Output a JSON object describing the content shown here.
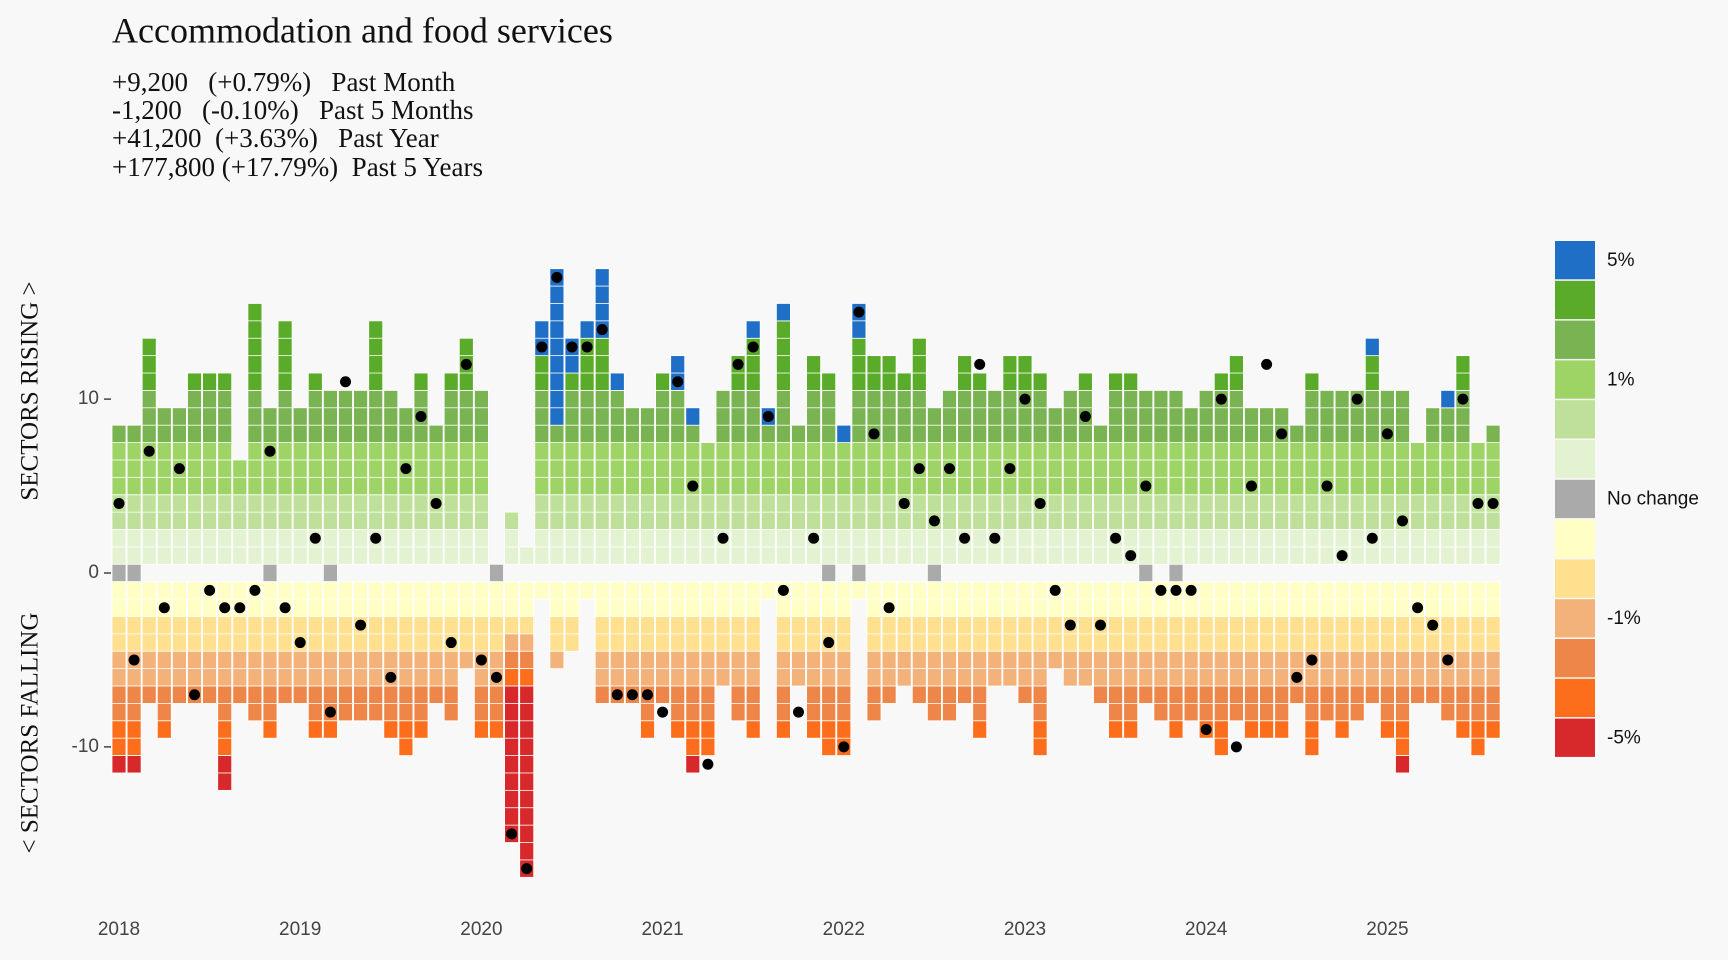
{
  "chart_data": {
    "type": "waffle-bar",
    "title": "Accommodation and food services",
    "subtitle": [
      "+9,200   (+0.79%)   Past Month",
      "-1,200   (-0.10%)   Past 5 Months",
      "+41,200  (+3.63%)   Past Year",
      "+177,800 (+17.79%)  Past 5 Years"
    ],
    "y_label_top": "SECTORS RISING >",
    "y_label_bottom": "< SECTORS FALLING",
    "categories": [
      "2018",
      null,
      null,
      null,
      null,
      null,
      null,
      null,
      null,
      null,
      null,
      null,
      "2019",
      null,
      null,
      null,
      null,
      null,
      null,
      null,
      null,
      null,
      null,
      null,
      "2020",
      null,
      null,
      null,
      null,
      null,
      null,
      null,
      null,
      null,
      null,
      null,
      "2021",
      null,
      null,
      null,
      null,
      null,
      null,
      null,
      null,
      null,
      null,
      null,
      "2022",
      null,
      null,
      null,
      null,
      null,
      null,
      null,
      null,
      null,
      null,
      null,
      "2023",
      null,
      null,
      null,
      null,
      null,
      null,
      null,
      null,
      null,
      null,
      null,
      "2024",
      null,
      null,
      null,
      null,
      null,
      null,
      null,
      null,
      null,
      null,
      null,
      "2025",
      null,
      null,
      null,
      null,
      null,
      null,
      null
    ],
    "ylim": [
      -18,
      18
    ],
    "yticks": [
      -10,
      0,
      10
    ],
    "series": [
      {
        "name": "5%",
        "color": "#1f6fc6",
        "stack": "rising",
        "values": [
          0,
          0,
          0,
          0,
          0,
          0,
          0,
          0,
          0,
          0,
          0,
          0,
          0,
          0,
          0,
          0,
          0,
          0,
          0,
          0,
          0,
          0,
          0,
          0,
          0,
          0,
          0,
          0,
          2,
          9,
          2,
          1,
          4,
          1,
          0,
          0,
          0,
          2,
          1,
          0,
          0,
          0,
          1,
          1,
          1,
          0,
          0,
          0,
          1,
          2,
          0,
          0,
          0,
          0,
          0,
          0,
          0,
          0,
          0,
          0,
          0,
          0,
          0,
          0,
          0,
          0,
          0,
          0,
          0,
          0,
          0,
          0,
          0,
          0,
          0,
          0,
          0,
          0,
          0,
          0,
          0,
          0,
          0,
          1,
          0,
          0,
          0,
          0,
          1,
          0,
          0,
          0
        ]
      },
      {
        "name": null,
        "color": "#5aab2a",
        "stack": "rising",
        "values": [
          0,
          0,
          3,
          0,
          0,
          1,
          1,
          1,
          0,
          5,
          0,
          4,
          0,
          1,
          0,
          0,
          0,
          4,
          0,
          0,
          1,
          0,
          1,
          3,
          0,
          0,
          0,
          0,
          2,
          0,
          1,
          3,
          3,
          0,
          0,
          0,
          1,
          0,
          0,
          0,
          0,
          2,
          3,
          0,
          4,
          0,
          2,
          1,
          0,
          3,
          2,
          2,
          1,
          3,
          0,
          0,
          2,
          1,
          0,
          2,
          2,
          1,
          0,
          0,
          1,
          0,
          1,
          1,
          0,
          0,
          0,
          0,
          0,
          1,
          2,
          0,
          0,
          0,
          0,
          1,
          0,
          0,
          0,
          2,
          0,
          0,
          0,
          0,
          0,
          2,
          0,
          0
        ]
      },
      {
        "name": null,
        "color": "#7ab352",
        "stack": "rising",
        "values": [
          1,
          1,
          3,
          2,
          2,
          3,
          3,
          3,
          0,
          3,
          2,
          3,
          2,
          3,
          3,
          3,
          3,
          3,
          3,
          2,
          3,
          1,
          3,
          3,
          3,
          0,
          0,
          0,
          3,
          1,
          3,
          3,
          3,
          3,
          2,
          2,
          3,
          3,
          1,
          0,
          3,
          3,
          3,
          1,
          3,
          1,
          3,
          3,
          0,
          3,
          3,
          3,
          3,
          3,
          2,
          3,
          3,
          3,
          3,
          3,
          3,
          3,
          2,
          3,
          3,
          1,
          3,
          3,
          3,
          3,
          3,
          2,
          3,
          3,
          3,
          2,
          2,
          2,
          1,
          3,
          3,
          3,
          3,
          3,
          3,
          3,
          0,
          2,
          2,
          3,
          0,
          1
        ]
      },
      {
        "name": "1%",
        "color": "#9dd465",
        "stack": "rising",
        "values": [
          3,
          3,
          3,
          3,
          3,
          3,
          3,
          3,
          2,
          3,
          3,
          3,
          3,
          3,
          3,
          3,
          3,
          3,
          3,
          3,
          3,
          3,
          3,
          3,
          3,
          0,
          0,
          0,
          3,
          3,
          3,
          3,
          3,
          3,
          3,
          3,
          3,
          3,
          3,
          3,
          3,
          3,
          3,
          3,
          3,
          3,
          3,
          3,
          3,
          3,
          3,
          3,
          3,
          3,
          3,
          3,
          3,
          3,
          3,
          3,
          3,
          3,
          3,
          3,
          3,
          3,
          3,
          3,
          3,
          3,
          3,
          3,
          3,
          3,
          3,
          3,
          3,
          3,
          3,
          3,
          3,
          3,
          3,
          3,
          3,
          3,
          3,
          3,
          3,
          3,
          3,
          3
        ]
      },
      {
        "name": null,
        "color": "#bfe09a",
        "stack": "rising",
        "values": [
          2,
          2,
          2,
          2,
          2,
          2,
          2,
          2,
          2,
          2,
          2,
          2,
          2,
          2,
          2,
          2,
          2,
          2,
          2,
          2,
          2,
          2,
          2,
          2,
          2,
          0,
          1,
          0,
          2,
          2,
          2,
          2,
          2,
          2,
          2,
          2,
          2,
          2,
          2,
          2,
          2,
          2,
          2,
          2,
          2,
          2,
          2,
          2,
          2,
          2,
          2,
          2,
          2,
          2,
          2,
          2,
          2,
          2,
          2,
          2,
          2,
          2,
          2,
          2,
          2,
          2,
          2,
          2,
          2,
          2,
          2,
          2,
          2,
          2,
          2,
          2,
          2,
          2,
          2,
          2,
          2,
          2,
          2,
          2,
          2,
          2,
          2,
          2,
          2,
          2,
          2,
          2
        ]
      },
      {
        "name": null,
        "color": "#e3f2d1",
        "stack": "rising",
        "values": [
          2,
          2,
          2,
          2,
          2,
          2,
          2,
          2,
          2,
          2,
          2,
          2,
          2,
          2,
          2,
          2,
          2,
          2,
          2,
          2,
          2,
          2,
          2,
          2,
          2,
          0,
          2,
          1,
          2,
          2,
          2,
          2,
          2,
          2,
          2,
          2,
          2,
          2,
          2,
          2,
          2,
          2,
          2,
          2,
          2,
          2,
          2,
          2,
          2,
          2,
          2,
          2,
          2,
          2,
          2,
          2,
          2,
          2,
          2,
          2,
          2,
          2,
          2,
          2,
          2,
          2,
          2,
          2,
          2,
          2,
          2,
          2,
          2,
          2,
          2,
          2,
          2,
          2,
          2,
          2,
          2,
          2,
          2,
          2,
          2,
          2,
          2,
          2,
          2,
          2,
          2,
          2
        ]
      },
      {
        "name": "No change",
        "color": "#aaaaaa",
        "stack": "none",
        "values": [
          1,
          1,
          0,
          0,
          0,
          0,
          0,
          0,
          0,
          0,
          1,
          0,
          0,
          0,
          1,
          0,
          0,
          0,
          0,
          0,
          0,
          0,
          0,
          0,
          0,
          1,
          0,
          0,
          0,
          0,
          0,
          0,
          0,
          0,
          0,
          0,
          0,
          0,
          0,
          0,
          0,
          0,
          0,
          0,
          0,
          0,
          0,
          1,
          0,
          1,
          0,
          0,
          0,
          0,
          1,
          0,
          0,
          0,
          0,
          0,
          0,
          0,
          0,
          0,
          0,
          0,
          0,
          0,
          1,
          0,
          1,
          0,
          0,
          0,
          0,
          0,
          0,
          0,
          0,
          0,
          0,
          0,
          0,
          0,
          0,
          0,
          0,
          0,
          0,
          0,
          0,
          0
        ]
      },
      {
        "name": null,
        "color": "#ffffc5",
        "stack": "falling",
        "values": [
          2,
          2,
          2,
          2,
          2,
          2,
          2,
          2,
          2,
          2,
          2,
          2,
          2,
          2,
          2,
          2,
          2,
          2,
          2,
          2,
          2,
          2,
          2,
          2,
          2,
          2,
          2,
          2,
          1,
          2,
          2,
          1,
          2,
          2,
          2,
          2,
          2,
          2,
          2,
          2,
          2,
          2,
          2,
          1,
          2,
          2,
          2,
          2,
          2,
          1,
          2,
          2,
          2,
          2,
          2,
          2,
          2,
          2,
          2,
          2,
          2,
          2,
          2,
          2,
          2,
          2,
          2,
          2,
          2,
          2,
          2,
          2,
          2,
          2,
          2,
          2,
          2,
          2,
          2,
          2,
          2,
          2,
          2,
          2,
          2,
          2,
          2,
          2,
          2,
          2,
          2,
          2
        ]
      },
      {
        "name": null,
        "color": "#fee08e",
        "stack": "falling",
        "values": [
          2,
          2,
          2,
          2,
          2,
          2,
          2,
          2,
          2,
          2,
          2,
          2,
          2,
          2,
          2,
          2,
          2,
          2,
          2,
          2,
          2,
          2,
          2,
          2,
          2,
          2,
          1,
          1,
          0,
          2,
          2,
          0,
          2,
          2,
          2,
          2,
          2,
          2,
          2,
          2,
          2,
          2,
          2,
          0,
          2,
          2,
          2,
          2,
          2,
          0,
          2,
          2,
          2,
          2,
          2,
          2,
          2,
          2,
          2,
          2,
          2,
          2,
          2,
          2,
          2,
          2,
          2,
          2,
          2,
          2,
          2,
          2,
          2,
          2,
          2,
          2,
          2,
          2,
          2,
          2,
          2,
          2,
          2,
          2,
          2,
          2,
          2,
          2,
          2,
          2,
          2,
          2
        ]
      },
      {
        "name": "-1%",
        "color": "#f3b27a",
        "stack": "falling",
        "values": [
          2,
          2,
          2,
          2,
          2,
          2,
          2,
          2,
          2,
          2,
          2,
          2,
          2,
          2,
          2,
          2,
          2,
          2,
          2,
          2,
          2,
          2,
          2,
          1,
          2,
          2,
          1,
          1,
          0,
          1,
          0,
          0,
          2,
          2,
          2,
          2,
          2,
          2,
          2,
          2,
          2,
          2,
          2,
          0,
          2,
          2,
          2,
          2,
          2,
          0,
          2,
          2,
          2,
          2,
          2,
          2,
          2,
          2,
          2,
          2,
          2,
          2,
          1,
          2,
          2,
          2,
          2,
          2,
          2,
          2,
          2,
          2,
          2,
          2,
          2,
          2,
          2,
          2,
          2,
          2,
          2,
          2,
          2,
          2,
          2,
          2,
          2,
          2,
          2,
          2,
          2,
          2
        ]
      },
      {
        "name": null,
        "color": "#ee8649",
        "stack": "falling",
        "values": [
          2,
          2,
          1,
          2,
          1,
          1,
          1,
          2,
          1,
          2,
          2,
          1,
          1,
          2,
          2,
          2,
          2,
          2,
          2,
          2,
          2,
          1,
          2,
          0,
          2,
          2,
          1,
          1,
          0,
          0,
          0,
          0,
          1,
          1,
          1,
          2,
          1,
          2,
          2,
          2,
          0,
          2,
          2,
          0,
          2,
          0,
          2,
          2,
          2,
          0,
          2,
          1,
          0,
          1,
          2,
          2,
          1,
          2,
          0,
          0,
          1,
          2,
          0,
          0,
          0,
          1,
          2,
          2,
          1,
          2,
          2,
          2,
          2,
          2,
          2,
          2,
          2,
          2,
          1,
          2,
          2,
          2,
          2,
          1,
          2,
          2,
          1,
          1,
          2,
          2,
          2,
          2
        ]
      },
      {
        "name": null,
        "color": "#fd6e1c",
        "stack": "falling",
        "values": [
          2,
          2,
          0,
          1,
          0,
          0,
          0,
          2,
          0,
          0,
          1,
          0,
          0,
          1,
          1,
          0,
          0,
          0,
          1,
          2,
          1,
          0,
          0,
          0,
          1,
          1,
          1,
          1,
          0,
          0,
          0,
          0,
          0,
          0,
          0,
          1,
          0,
          1,
          2,
          2,
          0,
          0,
          1,
          0,
          1,
          0,
          1,
          2,
          2,
          0,
          0,
          0,
          0,
          0,
          0,
          0,
          0,
          1,
          0,
          0,
          0,
          2,
          0,
          0,
          0,
          0,
          1,
          1,
          0,
          0,
          1,
          0,
          1,
          2,
          0,
          1,
          1,
          1,
          0,
          2,
          0,
          1,
          0,
          0,
          1,
          2,
          0,
          0,
          0,
          1,
          2,
          1
        ]
      },
      {
        "name": "-5%",
        "color": "#d7282b",
        "stack": "falling",
        "values": [
          1,
          1,
          0,
          0,
          0,
          0,
          0,
          2,
          0,
          0,
          0,
          0,
          0,
          0,
          0,
          0,
          0,
          0,
          0,
          0,
          0,
          0,
          0,
          0,
          0,
          0,
          9,
          11,
          0,
          0,
          0,
          0,
          0,
          0,
          0,
          0,
          0,
          0,
          1,
          0,
          0,
          0,
          0,
          0,
          0,
          0,
          0,
          0,
          0,
          0,
          0,
          0,
          0,
          0,
          0,
          0,
          0,
          0,
          0,
          0,
          0,
          0,
          0,
          0,
          0,
          0,
          0,
          0,
          0,
          0,
          0,
          0,
          0,
          0,
          0,
          0,
          0,
          0,
          0,
          0,
          0,
          0,
          0,
          0,
          0,
          1,
          0,
          0,
          0,
          0,
          0,
          0
        ]
      }
    ],
    "markers": {
      "color": "#000000",
      "values": [
        4,
        -5,
        7,
        -2,
        6,
        -7,
        -1,
        -2,
        -2,
        -1,
        7,
        -2,
        -4,
        2,
        -8,
        11,
        -3,
        2,
        -6,
        6,
        9,
        4,
        -4,
        12,
        -5,
        -6,
        -15,
        -17,
        13,
        17,
        13,
        13,
        14,
        -7,
        -7,
        -7,
        -8,
        11,
        5,
        -11,
        2,
        12,
        13,
        9,
        -1,
        -8,
        2,
        -4,
        -10,
        15,
        8,
        -2,
        4,
        6,
        3,
        6,
        2,
        12,
        2,
        6,
        10,
        4,
        -1,
        -3,
        9,
        -3,
        2,
        1,
        5,
        -1,
        -1,
        -1,
        -9,
        10,
        -10,
        5,
        12,
        8,
        -6,
        -5,
        5,
        1,
        10,
        2,
        8,
        3,
        -2,
        -3,
        -5,
        10,
        4,
        4
      ]
    }
  }
}
